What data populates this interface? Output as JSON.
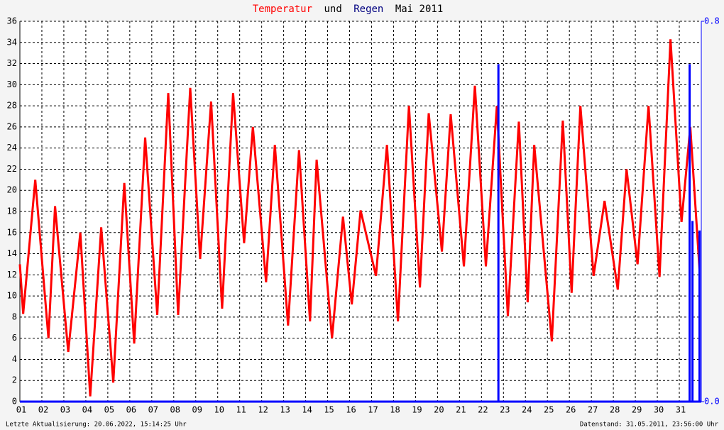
{
  "chart_data": {
    "type": "line",
    "title": [
      "Temperatur",
      "und",
      "Regen",
      "Mai 2011"
    ],
    "footer_left": "Letzte Aktualisierung: 20.06.2022, 15:14:25 Uhr",
    "footer_right": "Datenstand: 31.05.2011, 23:56:00 Uhr",
    "xlim": [
      1,
      32
    ],
    "xticks": [
      {
        "value": 1,
        "label": "01"
      },
      {
        "value": 2,
        "label": "02"
      },
      {
        "value": 3,
        "label": "03"
      },
      {
        "value": 4,
        "label": "04"
      },
      {
        "value": 5,
        "label": "05"
      },
      {
        "value": 6,
        "label": "06"
      },
      {
        "value": 7,
        "label": "07"
      },
      {
        "value": 8,
        "label": "08"
      },
      {
        "value": 9,
        "label": "09"
      },
      {
        "value": 10,
        "label": "10"
      },
      {
        "value": 11,
        "label": "11"
      },
      {
        "value": 12,
        "label": "12"
      },
      {
        "value": 13,
        "label": "13"
      },
      {
        "value": 14,
        "label": "14"
      },
      {
        "value": 15,
        "label": "15"
      },
      {
        "value": 16,
        "label": "16"
      },
      {
        "value": 17,
        "label": "17"
      },
      {
        "value": 18,
        "label": "18"
      },
      {
        "value": 19,
        "label": "19"
      },
      {
        "value": 20,
        "label": "20"
      },
      {
        "value": 21,
        "label": "21"
      },
      {
        "value": 22,
        "label": "22"
      },
      {
        "value": 23,
        "label": "23"
      },
      {
        "value": 24,
        "label": "24"
      },
      {
        "value": 25,
        "label": "25"
      },
      {
        "value": 26,
        "label": "26"
      },
      {
        "value": 27,
        "label": "27"
      },
      {
        "value": 28,
        "label": "28"
      },
      {
        "value": 29,
        "label": "29"
      },
      {
        "value": 30,
        "label": "30"
      },
      {
        "value": 31,
        "label": "31"
      }
    ],
    "ylim": [
      0,
      36
    ],
    "yticks": [
      0,
      2,
      4,
      6,
      8,
      10,
      12,
      14,
      16,
      18,
      20,
      22,
      24,
      26,
      28,
      30,
      32,
      34,
      36
    ],
    "y2lim": [
      0,
      0.8
    ],
    "y2ticks": [
      {
        "value": 0,
        "label": "0.0"
      },
      0.8
    ],
    "grid": true,
    "series": [
      {
        "name": "Temperatur",
        "color": "#ff0000",
        "type": "line",
        "x": [
          1.0,
          1.15,
          1.7,
          2.3,
          2.6,
          3.2,
          3.75,
          4.2,
          4.7,
          5.25,
          5.75,
          6.2,
          6.7,
          7.25,
          7.75,
          8.2,
          8.75,
          9.2,
          9.7,
          10.2,
          10.7,
          11.2,
          11.6,
          12.2,
          12.6,
          13.2,
          13.7,
          14.2,
          14.5,
          15.2,
          15.7,
          16.1,
          16.5,
          17.2,
          17.7,
          18.2,
          18.7,
          19.2,
          19.6,
          20.2,
          20.6,
          21.2,
          21.7,
          22.2,
          22.7,
          23.2,
          23.7,
          24.1,
          24.4,
          25.2,
          25.7,
          26.1,
          26.5,
          27.1,
          27.6,
          28.2,
          28.6,
          29.1,
          29.6,
          30.1,
          30.6,
          31.1,
          31.5,
          31.92
        ],
        "values": [
          13,
          8.3,
          21,
          6,
          18.5,
          4.7,
          16,
          0.5,
          16.5,
          1.8,
          20.7,
          5.5,
          25,
          8.2,
          29.2,
          8.2,
          29.7,
          13.5,
          28.4,
          8.8,
          29.2,
          15,
          26,
          11.3,
          24.3,
          7.2,
          23.8,
          7.6,
          22.9,
          6,
          17.5,
          9.2,
          18.1,
          11.9,
          24.3,
          7.6,
          28,
          10.8,
          27.3,
          14.2,
          27.2,
          12.8,
          29.9,
          12.8,
          28,
          8.1,
          26.5,
          9.4,
          24.3,
          5.7,
          26.6,
          10.3,
          28,
          11.9,
          19,
          10.6,
          22,
          13,
          28,
          11.8,
          34.3,
          17,
          26,
          12.5
        ]
      },
      {
        "name": "Regen",
        "color": "#0000ff",
        "type": "bar",
        "axis": "y2",
        "x": [
          22.77,
          31.47,
          31.6,
          31.92
        ],
        "values": [
          0.71,
          0.71,
          0.38,
          0.36
        ]
      }
    ]
  }
}
